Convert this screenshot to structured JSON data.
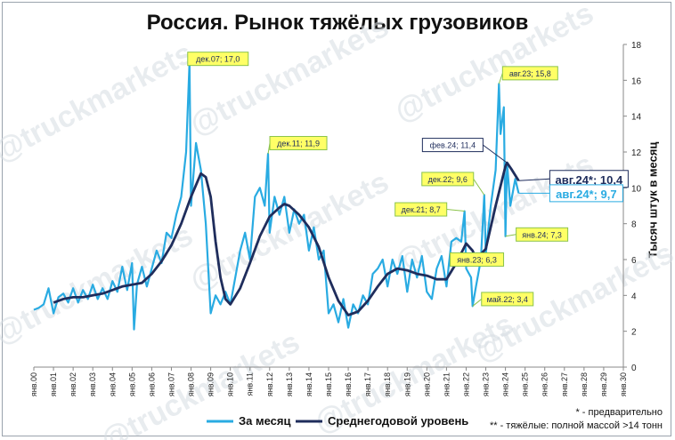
{
  "title": "Россия. Рынок тяжёлых грузовиков",
  "chart_data": {
    "type": "line",
    "title": "Россия. Рынок тяжёлых грузовиков",
    "ylabel": "Тысяч штук в месяц",
    "xlabel": "",
    "ylim": [
      0,
      18
    ],
    "yticks": [
      0,
      2,
      4,
      6,
      8,
      10,
      12,
      14,
      16,
      18
    ],
    "x_range": [
      "янв.00",
      "янв.30"
    ],
    "xticks": [
      "янв.00",
      "янв.01",
      "янв.02",
      "янв.03",
      "янв.04",
      "янв.05",
      "янв.06",
      "янв.07",
      "янв.08",
      "янв.09",
      "янв.10",
      "янв.11",
      "янв.12",
      "янв.13",
      "янв.14",
      "янв.15",
      "янв.16",
      "янв.17",
      "янв.18",
      "янв.19",
      "янв.20",
      "янв.21",
      "янв.22",
      "янв.23",
      "янв.24",
      "янв.25",
      "янв.26",
      "янв.27",
      "янв.28",
      "янв.29",
      "янв.30"
    ],
    "grid": false,
    "legend_position": "bottom",
    "series": [
      {
        "name": "За месяц",
        "color": "#29abe2",
        "points": [
          [
            2000.0,
            3.2
          ],
          [
            2000.25,
            3.3
          ],
          [
            2000.5,
            3.5
          ],
          [
            2000.75,
            4.4
          ],
          [
            2001.0,
            3.0
          ],
          [
            2001.25,
            3.9
          ],
          [
            2001.5,
            4.1
          ],
          [
            2001.75,
            3.6
          ],
          [
            2002.0,
            4.4
          ],
          [
            2002.25,
            3.6
          ],
          [
            2002.5,
            4.3
          ],
          [
            2002.75,
            3.8
          ],
          [
            2003.0,
            4.6
          ],
          [
            2003.25,
            3.8
          ],
          [
            2003.5,
            4.4
          ],
          [
            2003.75,
            3.8
          ],
          [
            2004.0,
            4.8
          ],
          [
            2004.25,
            4.2
          ],
          [
            2004.5,
            5.6
          ],
          [
            2004.75,
            4.3
          ],
          [
            2005.0,
            5.8
          ],
          [
            2005.1,
            2.1
          ],
          [
            2005.25,
            4.6
          ],
          [
            2005.5,
            5.6
          ],
          [
            2005.75,
            4.5
          ],
          [
            2006.0,
            5.5
          ],
          [
            2006.25,
            6.5
          ],
          [
            2006.5,
            5.8
          ],
          [
            2006.75,
            7.5
          ],
          [
            2007.0,
            7.2
          ],
          [
            2007.25,
            8.5
          ],
          [
            2007.5,
            9.5
          ],
          [
            2007.75,
            12.0
          ],
          [
            2007.92,
            17.0
          ],
          [
            2008.0,
            9.0
          ],
          [
            2008.25,
            12.5
          ],
          [
            2008.5,
            11.0
          ],
          [
            2008.75,
            8.0
          ],
          [
            2009.0,
            3.0
          ],
          [
            2009.25,
            4.0
          ],
          [
            2009.5,
            3.5
          ],
          [
            2009.75,
            4.2
          ],
          [
            2010.0,
            3.5
          ],
          [
            2010.25,
            5.0
          ],
          [
            2010.5,
            6.5
          ],
          [
            2010.75,
            7.5
          ],
          [
            2011.0,
            6.0
          ],
          [
            2011.25,
            9.5
          ],
          [
            2011.5,
            10.0
          ],
          [
            2011.75,
            9.0
          ],
          [
            2011.92,
            11.9
          ],
          [
            2012.0,
            7.5
          ],
          [
            2012.25,
            9.5
          ],
          [
            2012.5,
            8.5
          ],
          [
            2012.75,
            9.5
          ],
          [
            2013.0,
            7.5
          ],
          [
            2013.25,
            8.8
          ],
          [
            2013.5,
            8.0
          ],
          [
            2013.75,
            8.5
          ],
          [
            2014.0,
            6.5
          ],
          [
            2014.25,
            7.8
          ],
          [
            2014.5,
            6.0
          ],
          [
            2014.75,
            6.5
          ],
          [
            2015.0,
            3.0
          ],
          [
            2015.25,
            3.5
          ],
          [
            2015.5,
            2.5
          ],
          [
            2015.75,
            3.8
          ],
          [
            2016.0,
            2.2
          ],
          [
            2016.25,
            3.5
          ],
          [
            2016.5,
            3.0
          ],
          [
            2016.75,
            4.0
          ],
          [
            2017.0,
            3.5
          ],
          [
            2017.25,
            5.2
          ],
          [
            2017.5,
            5.5
          ],
          [
            2017.75,
            6.0
          ],
          [
            2018.0,
            4.5
          ],
          [
            2018.25,
            6.0
          ],
          [
            2018.5,
            5.2
          ],
          [
            2018.75,
            6.2
          ],
          [
            2019.0,
            4.2
          ],
          [
            2019.25,
            6.0
          ],
          [
            2019.5,
            5.0
          ],
          [
            2019.75,
            6.2
          ],
          [
            2020.0,
            4.2
          ],
          [
            2020.25,
            3.8
          ],
          [
            2020.5,
            5.5
          ],
          [
            2020.75,
            6.2
          ],
          [
            2021.0,
            4.5
          ],
          [
            2021.25,
            7.0
          ],
          [
            2021.5,
            7.2
          ],
          [
            2021.75,
            7.0
          ],
          [
            2021.92,
            8.7
          ],
          [
            2022.0,
            5.5
          ],
          [
            2022.25,
            5.0
          ],
          [
            2022.33,
            3.4
          ],
          [
            2022.5,
            4.5
          ],
          [
            2022.75,
            6.0
          ],
          [
            2022.92,
            9.6
          ],
          [
            2023.0,
            6.3
          ],
          [
            2023.25,
            9.0
          ],
          [
            2023.5,
            11.0
          ],
          [
            2023.67,
            15.8
          ],
          [
            2023.75,
            13.0
          ],
          [
            2023.92,
            14.5
          ],
          [
            2024.0,
            7.3
          ],
          [
            2024.08,
            11.4
          ],
          [
            2024.25,
            9.0
          ],
          [
            2024.5,
            10.5
          ],
          [
            2024.67,
            9.7
          ]
        ]
      },
      {
        "name": "Среднегодовой уровень",
        "color": "#1f2d5c",
        "points": [
          [
            2001.0,
            3.6
          ],
          [
            2001.5,
            3.8
          ],
          [
            2002.0,
            3.9
          ],
          [
            2002.5,
            3.9
          ],
          [
            2003.0,
            4.0
          ],
          [
            2003.5,
            4.1
          ],
          [
            2004.0,
            4.3
          ],
          [
            2004.5,
            4.5
          ],
          [
            2005.0,
            4.6
          ],
          [
            2005.5,
            4.7
          ],
          [
            2006.0,
            5.2
          ],
          [
            2006.5,
            5.9
          ],
          [
            2007.0,
            6.8
          ],
          [
            2007.5,
            8.0
          ],
          [
            2008.0,
            9.5
          ],
          [
            2008.5,
            10.8
          ],
          [
            2008.75,
            10.6
          ],
          [
            2009.0,
            9.5
          ],
          [
            2009.25,
            7.0
          ],
          [
            2009.5,
            5.0
          ],
          [
            2009.75,
            3.8
          ],
          [
            2010.0,
            3.5
          ],
          [
            2010.5,
            4.4
          ],
          [
            2011.0,
            5.8
          ],
          [
            2011.5,
            7.3
          ],
          [
            2012.0,
            8.4
          ],
          [
            2012.5,
            8.9
          ],
          [
            2012.75,
            9.1
          ],
          [
            2013.0,
            9.0
          ],
          [
            2013.5,
            8.5
          ],
          [
            2014.0,
            7.8
          ],
          [
            2014.5,
            6.7
          ],
          [
            2015.0,
            5.0
          ],
          [
            2015.5,
            3.7
          ],
          [
            2016.0,
            2.9
          ],
          [
            2016.5,
            3.1
          ],
          [
            2017.0,
            3.7
          ],
          [
            2017.5,
            4.5
          ],
          [
            2018.0,
            5.2
          ],
          [
            2018.5,
            5.5
          ],
          [
            2019.0,
            5.4
          ],
          [
            2019.5,
            5.2
          ],
          [
            2020.0,
            5.1
          ],
          [
            2020.5,
            4.9
          ],
          [
            2021.0,
            4.9
          ],
          [
            2021.5,
            5.8
          ],
          [
            2022.0,
            6.9
          ],
          [
            2022.33,
            6.5
          ],
          [
            2022.5,
            6.0
          ],
          [
            2023.0,
            6.6
          ],
          [
            2023.5,
            9.0
          ],
          [
            2024.0,
            11.2
          ],
          [
            2024.08,
            11.4
          ],
          [
            2024.33,
            11.0
          ],
          [
            2024.67,
            10.4
          ]
        ]
      }
    ],
    "annotations": [
      {
        "label": "дек.07; 17,0",
        "x": 2007.92,
        "y": 17.0
      },
      {
        "label": "дек.11; 11,9",
        "x": 2011.92,
        "y": 11.9
      },
      {
        "label": "дек.21; 8,7",
        "x": 2021.92,
        "y": 8.7
      },
      {
        "label": "дек.22; 9,6",
        "x": 2022.92,
        "y": 9.6
      },
      {
        "label": "янв.23; 6,3",
        "x": 2023.0,
        "y": 6.3
      },
      {
        "label": "май.22; 3,4",
        "x": 2022.33,
        "y": 3.4
      },
      {
        "label": "авг.23; 15,8",
        "x": 2023.67,
        "y": 15.8
      },
      {
        "label": "фев.24; 11,4",
        "x": 2024.08,
        "y": 11.4
      },
      {
        "label": "авг.24*; 10,4",
        "x": 2024.67,
        "y": 10.4
      },
      {
        "label": "авг.24*; 9,7",
        "x": 2024.67,
        "y": 9.7
      },
      {
        "label": "янв.24; 7,3",
        "x": 2024.0,
        "y": 7.3
      }
    ]
  },
  "watermark": "@truckmarkets",
  "notes": {
    "preliminary": "* - предварительно",
    "heavy": "** - тяжёлые: полной массой >14 тонн"
  }
}
